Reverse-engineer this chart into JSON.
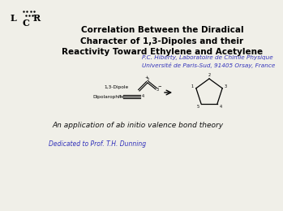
{
  "title_line1": "Correlation Between the Diradical",
  "title_line2": "Character of 1,3-Dipoles and their",
  "title_line3": "Reactivity Toward Ethylene and Acetylene",
  "author_line1": "P.C. Hiberty, Laboratoire de Chimie Physique",
  "author_line2": "Université de Paris-Sud, 91405 Orsay, France",
  "tagline": "An application of ab initio valence bond theory",
  "dedication": "Dedicated to Prof. T.H. Dunning",
  "label_dipole": "1,3-Dipole",
  "label_dipolarophile": "Dipolarophile",
  "bg_color": "#f0efe8",
  "title_color": "#000000",
  "author_color": "#3333bb",
  "tagline_color": "#111111",
  "dedication_color": "#3333bb"
}
